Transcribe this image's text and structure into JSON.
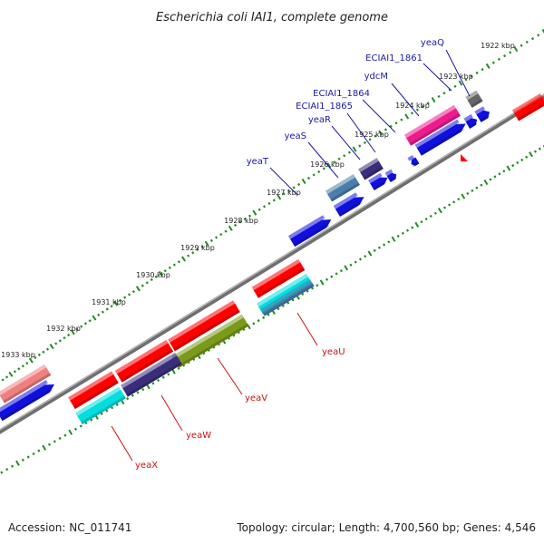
{
  "title": "Escherichia coli IAI1, complete genome",
  "footer": {
    "accession": "Accession: NC_011741",
    "summary": "Topology: circular; Length: 4,700,560 bp; Genes: 4,546"
  },
  "colors": {
    "backbone": "#8a8a8a",
    "ticks": "#228b22",
    "top_label": "#1a1aa0",
    "bottom_label": "#cc1111"
  },
  "kbp_labels": [
    "1922 kbp",
    "1923 kbp",
    "1924 kbp",
    "1925 kbp",
    "1926 kbp",
    "1927 kbp",
    "1928 kbp",
    "1929 kbp",
    "1930 kbp",
    "1931 kbp",
    "1932 kbp",
    "1933 kbp"
  ],
  "labels_top": [
    "yeaQ",
    "ECIAI1_1861",
    "ydcM",
    "ECIAI1_1864",
    "ECIAI1_1865",
    "yeaR",
    "yeaS",
    "yeaT"
  ],
  "labels_bottom": [
    "yeaU",
    "yeaV",
    "yeaW",
    "yeaX"
  ]
}
